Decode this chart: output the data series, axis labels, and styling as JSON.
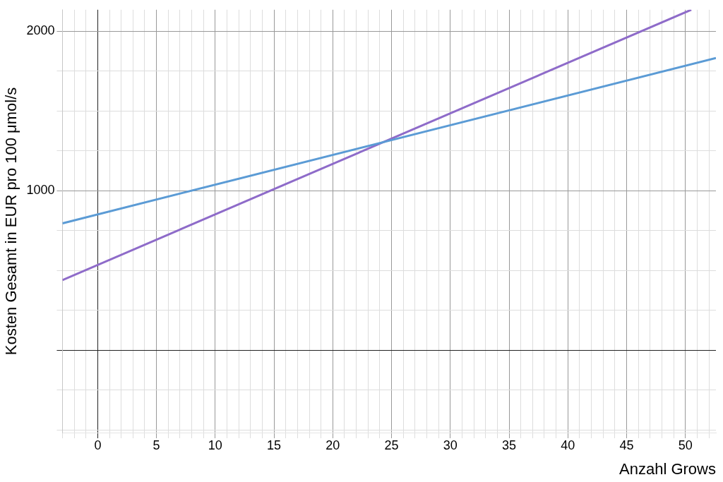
{
  "chart_data": {
    "type": "line",
    "xlabel": "Anzahl Grows",
    "ylabel": "Kosten Gesamt in EUR pro 100 μmol/s",
    "xlim": [
      -3,
      52.6
    ],
    "ylim": [
      -517,
      2136
    ],
    "xticks": [
      {
        "value": -3,
        "label": null
      },
      {
        "value": -2,
        "label": null
      },
      {
        "value": -1,
        "label": null
      },
      0,
      {
        "value": 1,
        "label": null
      },
      {
        "value": 2,
        "label": null
      },
      {
        "value": 3,
        "label": null
      },
      {
        "value": 4,
        "label": null
      },
      5,
      {
        "value": 6,
        "label": null
      },
      {
        "value": 7,
        "label": null
      },
      {
        "value": 8,
        "label": null
      },
      {
        "value": 9,
        "label": null
      },
      10,
      {
        "value": 11,
        "label": null
      },
      {
        "value": 12,
        "label": null
      },
      {
        "value": 13,
        "label": null
      },
      {
        "value": 14,
        "label": null
      },
      15,
      {
        "value": 16,
        "label": null
      },
      {
        "value": 17,
        "label": null
      },
      {
        "value": 18,
        "label": null
      },
      {
        "value": 19,
        "label": null
      },
      20,
      {
        "value": 21,
        "label": null
      },
      {
        "value": 22,
        "label": null
      },
      {
        "value": 23,
        "label": null
      },
      {
        "value": 24,
        "label": null
      },
      25,
      {
        "value": 26,
        "label": null
      },
      {
        "value": 27,
        "label": null
      },
      {
        "value": 28,
        "label": null
      },
      {
        "value": 29,
        "label": null
      },
      30,
      {
        "value": 31,
        "label": null
      },
      {
        "value": 32,
        "label": null
      },
      {
        "value": 33,
        "label": null
      },
      {
        "value": 34,
        "label": null
      },
      35,
      {
        "value": 36,
        "label": null
      },
      {
        "value": 37,
        "label": null
      },
      {
        "value": 38,
        "label": null
      },
      {
        "value": 39,
        "label": null
      },
      40,
      {
        "value": 41,
        "label": null
      },
      {
        "value": 42,
        "label": null
      },
      {
        "value": 43,
        "label": null
      },
      {
        "value": 44,
        "label": null
      },
      45,
      {
        "value": 46,
        "label": null
      },
      {
        "value": 47,
        "label": null
      },
      {
        "value": 48,
        "label": null
      },
      {
        "value": 49,
        "label": null
      },
      50,
      {
        "value": 51,
        "label": null
      },
      {
        "value": 52,
        "label": null
      }
    ],
    "yticks": [
      {
        "value": -500,
        "label": null
      },
      {
        "value": -250,
        "label": null
      },
      {
        "value": 0,
        "label": null
      },
      {
        "value": 250,
        "label": null
      },
      {
        "value": 500,
        "label": null
      },
      {
        "value": 750,
        "label": null
      },
      1000,
      {
        "value": 1250,
        "label": null
      },
      {
        "value": 1500,
        "label": null
      },
      {
        "value": 1750,
        "label": null
      },
      2000
    ],
    "grid": true,
    "legend": false,
    "marker": "none",
    "line_style": "solid",
    "series": [
      {
        "color": "#5b9bd5",
        "x": [
          -3,
          52.6
        ],
        "values": [
          796,
          1833
        ]
      },
      {
        "color": "#8e6bc9",
        "x": [
          -3,
          50.5
        ],
        "values": [
          440,
          2136
        ]
      }
    ]
  }
}
